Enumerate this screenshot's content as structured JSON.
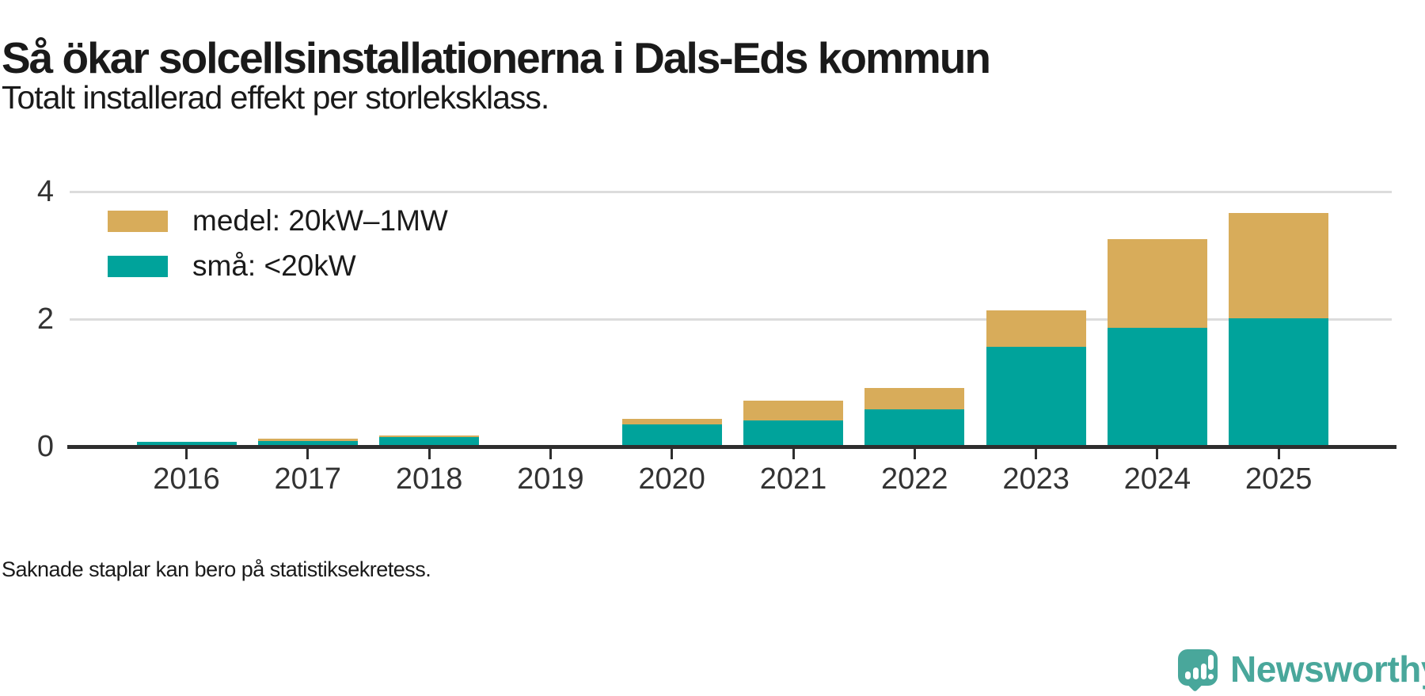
{
  "header": {
    "title": "Så ökar solcellsinstallationerna i Dals-Eds kommun",
    "subtitle": "Totalt installerad effekt per storleksklass."
  },
  "chart_data": {
    "type": "bar",
    "stacked": true,
    "title": "Så ökar solcellsinstallationerna i Dals-Eds kommun",
    "subtitle": "Totalt installerad effekt per storleksklass.",
    "categories": [
      "2016",
      "2017",
      "2018",
      "2019",
      "2020",
      "2021",
      "2022",
      "2023",
      "2024",
      "2025"
    ],
    "series": [
      {
        "name": "medel: 20kW–1MW",
        "color": "#d8ac5a",
        "values": [
          0,
          0.03,
          0.03,
          null,
          0.09,
          0.31,
          0.34,
          0.57,
          1.39,
          1.65
        ]
      },
      {
        "name": "små: <20kW",
        "color": "#00a39b",
        "values": [
          0.07,
          0.09,
          0.15,
          null,
          0.35,
          0.41,
          0.58,
          1.57,
          1.86,
          2.01
        ]
      }
    ],
    "totals": [
      0.07,
      0.12,
      0.18,
      null,
      0.44,
      0.72,
      0.92,
      2.14,
      3.25,
      3.66
    ],
    "missing_categories": [
      "2019"
    ],
    "ylim": [
      0,
      4
    ],
    "yticks": [
      0,
      2,
      4
    ],
    "xlabel": "",
    "ylabel": "",
    "grid": "horizontal",
    "legend_position": "top-left"
  },
  "footer": {
    "note": "Saknade staplar kan bero på statistiksekretess.",
    "brand": "Newsworthy"
  },
  "colors": {
    "bar_small": "#00a39b",
    "bar_medium": "#d8ac5a",
    "axis": "#2e2e2e",
    "gridline": "#dcdcdc",
    "text": "#1a1a1a",
    "axis_labels": "#333333",
    "brand_teal": "#49a79b"
  }
}
